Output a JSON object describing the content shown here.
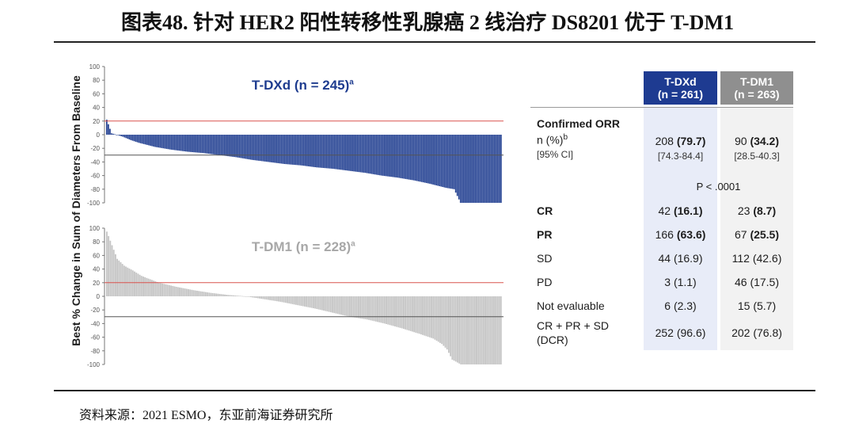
{
  "page": {
    "title": "图表48. 针对 HER2 阳性转移性乳腺癌 2 线治疗 DS8201 优于 T-DM1",
    "source": "资料来源：2021 ESMO，东亚前海证券研究所"
  },
  "chart_data": [
    {
      "type": "bar",
      "title": "T-DXd (n = 245)",
      "title_superscript": "a",
      "ylabel": "Best % Change in Sum of Diameters From Baseline",
      "ylim": [
        -100,
        100
      ],
      "yticks": [
        "100",
        "80",
        "60",
        "40",
        "20",
        "0",
        "-20",
        "-40",
        "-60",
        "-80",
        "-100"
      ],
      "reference_lines": [
        20,
        -30
      ],
      "color": "#1e3c8f",
      "reference_color_upper": "#d9534f",
      "reference_color_lower": "#555555",
      "n_bars": 245,
      "series": [
        {
          "values_description": "sorted waterfall",
          "points": [
            [
              0,
              22
            ],
            [
              3,
              2
            ],
            [
              6,
              0
            ],
            [
              10,
              -3
            ],
            [
              15,
              -8
            ],
            [
              20,
              -12
            ],
            [
              30,
              -18
            ],
            [
              40,
              -22
            ],
            [
              50,
              -25
            ],
            [
              60,
              -27
            ],
            [
              70,
              -30
            ],
            [
              80,
              -33
            ],
            [
              90,
              -37
            ],
            [
              100,
              -40
            ],
            [
              110,
              -43
            ],
            [
              120,
              -45
            ],
            [
              130,
              -48
            ],
            [
              140,
              -50
            ],
            [
              150,
              -53
            ],
            [
              160,
              -56
            ],
            [
              170,
              -60
            ],
            [
              180,
              -63
            ],
            [
              190,
              -67
            ],
            [
              200,
              -72
            ],
            [
              210,
              -78
            ],
            [
              215,
              -80
            ],
            [
              219,
              -100
            ],
            [
              244,
              -100
            ]
          ]
        }
      ]
    },
    {
      "type": "bar",
      "title": "T-DM1 (n = 228)",
      "title_superscript": "a",
      "ylabel": "Best % Change in Sum of Diameters From Baseline",
      "ylim": [
        -100,
        100
      ],
      "yticks": [
        "100",
        "80",
        "60",
        "40",
        "20",
        "0",
        "-20",
        "-40",
        "-60",
        "-80",
        "-100"
      ],
      "reference_lines": [
        20,
        -30
      ],
      "color": "#c4c4c4",
      "n_bars": 228,
      "series": [
        {
          "values_description": "sorted waterfall",
          "points": [
            [
              0,
              95
            ],
            [
              3,
              75
            ],
            [
              6,
              55
            ],
            [
              10,
              45
            ],
            [
              15,
              38
            ],
            [
              20,
              30
            ],
            [
              30,
              20
            ],
            [
              40,
              14
            ],
            [
              50,
              9
            ],
            [
              60,
              5
            ],
            [
              70,
              2
            ],
            [
              80,
              0
            ],
            [
              90,
              -4
            ],
            [
              100,
              -8
            ],
            [
              110,
              -13
            ],
            [
              120,
              -18
            ],
            [
              130,
              -24
            ],
            [
              140,
              -30
            ],
            [
              150,
              -34
            ],
            [
              160,
              -40
            ],
            [
              170,
              -47
            ],
            [
              180,
              -55
            ],
            [
              188,
              -62
            ],
            [
              193,
              -70
            ],
            [
              196,
              -78
            ],
            [
              199,
              -93
            ],
            [
              204,
              -100
            ],
            [
              227,
              -100
            ]
          ]
        }
      ]
    }
  ],
  "table": {
    "columns": [
      {
        "name": "T-DXd",
        "n": "(n = 261)",
        "color": "#1e3b91"
      },
      {
        "name": "T-DM1",
        "n": "(n = 263)",
        "color": "#8f8f8f"
      }
    ],
    "orr": {
      "heading": "Confirmed ORR",
      "n_label": "n (%)",
      "n_sup": "b",
      "ci_label": "[95% CI]",
      "tdxd_n": "208",
      "tdxd_pct": "(79.7)",
      "tdxd_ci": "[74.3-84.4]",
      "tdm1_n": "90",
      "tdm1_pct": "(34.2)",
      "tdm1_ci": "[28.5-40.3]",
      "p_value": "P < .0001"
    },
    "rows": [
      {
        "label": "CR",
        "bold": true,
        "tdxd_n": "42",
        "tdxd_pct": "(16.1)",
        "tdm1_n": "23",
        "tdm1_pct": "(8.7)"
      },
      {
        "label": "PR",
        "bold": true,
        "tdxd_n": "166",
        "tdxd_pct": "(63.6)",
        "tdm1_n": "67",
        "tdm1_pct": "(25.5)"
      },
      {
        "label": "SD",
        "bold": false,
        "tdxd_n": "44",
        "tdxd_pct": "(16.9)",
        "tdm1_n": "112",
        "tdm1_pct": "(42.6)"
      },
      {
        "label": "PD",
        "bold": false,
        "tdxd_n": "3",
        "tdxd_pct": "(1.1)",
        "tdm1_n": "46",
        "tdm1_pct": "(17.5)"
      },
      {
        "label": "Not evaluable",
        "bold": false,
        "tdxd_n": "6",
        "tdxd_pct": "(2.3)",
        "tdm1_n": "15",
        "tdm1_pct": "(5.7)"
      }
    ],
    "dcr": {
      "label_line1": "CR + PR + SD",
      "label_line2": "(DCR)",
      "tdxd": "252 (96.6)",
      "tdm1": "202 (76.8)"
    }
  }
}
